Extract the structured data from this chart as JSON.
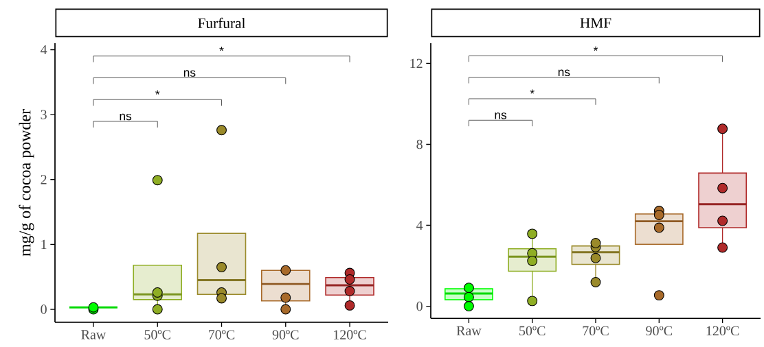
{
  "chart_data": [
    {
      "type": "box",
      "title": "Furfural",
      "ylabel": "mg/g of cocoa powder",
      "categories": [
        "Raw",
        "50ºC",
        "70ºC",
        "90ºC",
        "120ºC"
      ],
      "ylim": [
        -0.2,
        4.1
      ],
      "yticks": [
        0,
        1,
        2,
        3,
        4
      ],
      "grid": false,
      "annotations": [
        "ns",
        "*",
        "ns",
        "*"
      ],
      "series": [
        {
          "type": "box",
          "colors": [
            "#00ff00",
            "#8fae24",
            "#9a8a2a",
            "#a86a2a",
            "#b02a2a"
          ],
          "boxes": [
            {
              "low": 0.0,
              "q1": 0.03,
              "median": 0.03,
              "q3": 0.03,
              "high": 0.03
            },
            {
              "low": 0.0,
              "q1": 0.15,
              "median": 0.23,
              "q3": 0.68,
              "high": 0.68
            },
            {
              "low": 0.17,
              "q1": 0.23,
              "median": 0.45,
              "q3": 1.17,
              "high": 1.17
            },
            {
              "low": 0.0,
              "q1": 0.13,
              "median": 0.39,
              "q3": 0.6,
              "high": 0.6
            },
            {
              "low": 0.06,
              "q1": 0.22,
              "median": 0.37,
              "q3": 0.49,
              "high": 0.56
            }
          ]
        },
        {
          "type": "scatter",
          "marker": "circle",
          "x": [
            "Raw",
            "Raw",
            "Raw",
            "50ºC",
            "50ºC",
            "50ºC",
            "50ºC",
            "70ºC",
            "70ºC",
            "70ºC",
            "70ºC",
            "90ºC",
            "90ºC",
            "90ºC",
            "120ºC",
            "120ºC",
            "120ºC",
            "120ºC"
          ],
          "values": [
            0.0,
            null,
            0.03,
            1.99,
            0.21,
            0.26,
            0.0,
            2.76,
            0.65,
            0.26,
            0.17,
            0.6,
            0.18,
            0.0,
            0.56,
            0.46,
            0.28,
            0.06
          ],
          "colors": [
            "#00ff00",
            "#00ff00",
            "#00ff00",
            "#8fae24",
            "#8fae24",
            "#8fae24",
            "#8fae24",
            "#9a8a2a",
            "#9a8a2a",
            "#9a8a2a",
            "#9a8a2a",
            "#a86a2a",
            "#a86a2a",
            "#a86a2a",
            "#b02a2a",
            "#b02a2a",
            "#b02a2a",
            "#b02a2a"
          ]
        }
      ]
    },
    {
      "type": "box",
      "title": "HMF",
      "categories": [
        "Raw",
        "50ºC",
        "70ºC",
        "90ºC",
        "120ºC"
      ],
      "ylim": [
        -0.6,
        13.0
      ],
      "yticks": [
        0,
        4,
        8,
        12
      ],
      "grid": false,
      "annotations": [
        "ns",
        "*",
        "ns",
        "*"
      ],
      "series": [
        {
          "type": "box",
          "colors": [
            "#00ff00",
            "#8fae24",
            "#9a8a2a",
            "#a86a2a",
            "#b02a2a"
          ],
          "boxes": [
            {
              "low": 0.0,
              "q1": 0.32,
              "median": 0.63,
              "q3": 0.86,
              "high": 0.91
            },
            {
              "low": 0.26,
              "q1": 1.73,
              "median": 2.45,
              "q3": 2.84,
              "high": 3.58
            },
            {
              "low": 1.19,
              "q1": 2.07,
              "median": 2.67,
              "q3": 2.98,
              "high": 3.12
            },
            {
              "low": 3.06,
              "q1": 3.06,
              "median": 4.2,
              "q3": 4.56,
              "high": 4.71
            },
            {
              "low": 2.9,
              "q1": 3.88,
              "median": 5.04,
              "q3": 6.58,
              "high": 8.77
            }
          ]
        },
        {
          "type": "scatter",
          "marker": "circle",
          "x": [
            "Raw",
            "Raw",
            "Raw",
            "50ºC",
            "50ºC",
            "50ºC",
            "50ºC",
            "70ºC",
            "70ºC",
            "70ºC",
            "70ºC",
            "90ºC",
            "90ºC",
            "90ºC",
            "90ºC",
            "120ºC",
            "120ºC",
            "120ºC",
            "120ºC"
          ],
          "values": [
            0.91,
            0.45,
            0.0,
            3.58,
            2.62,
            2.24,
            0.26,
            2.92,
            3.12,
            2.38,
            1.19,
            4.71,
            4.51,
            3.88,
            0.54,
            8.77,
            5.84,
            4.22,
            2.9
          ],
          "colors": [
            "#00ff00",
            "#00ff00",
            "#00ff00",
            "#8fae24",
            "#8fae24",
            "#8fae24",
            "#8fae24",
            "#9a8a2a",
            "#9a8a2a",
            "#9a8a2a",
            "#9a8a2a",
            "#a86a2a",
            "#a86a2a",
            "#a86a2a",
            "#a86a2a",
            "#b02a2a",
            "#b02a2a",
            "#b02a2a",
            "#b02a2a"
          ]
        }
      ]
    }
  ]
}
